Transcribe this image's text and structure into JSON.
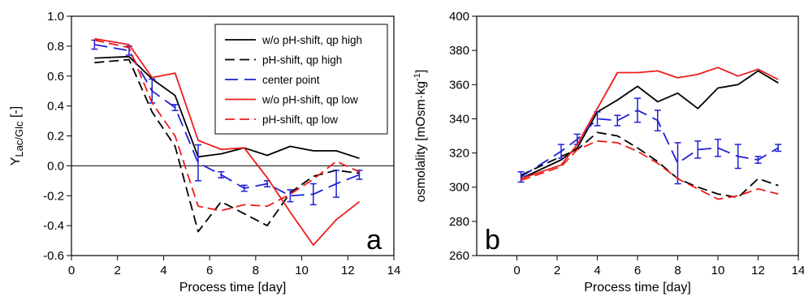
{
  "chart_data": [
    {
      "type": "line",
      "panel_label": "a",
      "xlabel": "Process time [day]",
      "ylabel_main": "Y",
      "ylabel_sub": "Lac/Glc",
      "ylabel_suffix": " [-]",
      "xlim": [
        0,
        14
      ],
      "ylim": [
        -0.6,
        1.0
      ],
      "xticks": [
        0,
        2,
        4,
        6,
        8,
        10,
        12,
        14
      ],
      "yticks": [
        -0.6,
        -0.4,
        -0.2,
        0.0,
        0.2,
        0.4,
        0.6,
        0.8,
        1.0
      ],
      "ytick_labels": [
        "-0.6",
        "-0.4",
        "-0.2",
        "0.0",
        "0.2",
        "0.4",
        "0.6",
        "0.8",
        "1.0"
      ],
      "reference_line_y": 0.0,
      "legend": {
        "position": "top-right"
      },
      "series": [
        {
          "name": "w/o pH-shift, qp high",
          "color": "#000000",
          "dash": "solid",
          "x": [
            1,
            2.5,
            3.5,
            4.5,
            5.5,
            6.5,
            7.5,
            8.5,
            9.5,
            10.5,
            11.5,
            12.5
          ],
          "y": [
            0.72,
            0.73,
            0.58,
            0.47,
            0.06,
            0.08,
            0.12,
            0.07,
            0.13,
            0.1,
            0.1,
            0.05
          ]
        },
        {
          "name": "pH-shift, qp high",
          "color": "#000000",
          "dash": "dashed",
          "x": [
            1,
            2.5,
            3.5,
            4.5,
            5.5,
            6.5,
            7.5,
            8.5,
            9.5,
            10.5,
            11.5,
            12.5
          ],
          "y": [
            0.69,
            0.71,
            0.36,
            0.13,
            -0.44,
            -0.24,
            -0.32,
            -0.4,
            -0.18,
            -0.07,
            -0.03,
            -0.05
          ]
        },
        {
          "name": "center point",
          "color": "#1f1fd6",
          "dash": "long-dash",
          "x": [
            1,
            2.5,
            3.5,
            4.5,
            5.5,
            6.5,
            7.5,
            8.5,
            9.5,
            10.5,
            11.5,
            12.5
          ],
          "y": [
            0.81,
            0.77,
            0.5,
            0.39,
            0.02,
            -0.06,
            -0.15,
            -0.12,
            -0.2,
            -0.19,
            -0.12,
            -0.06
          ],
          "err": [
            0.03,
            0.03,
            0.08,
            0.02,
            0.12,
            0.02,
            0.02,
            0.02,
            0.04,
            0.07,
            0.09,
            0.03
          ]
        },
        {
          "name": "w/o pH-shift, qp low",
          "color": "#ee1c1c",
          "dash": "solid",
          "x": [
            1,
            2.5,
            3.5,
            4.5,
            5.5,
            6.5,
            7.5,
            8.5,
            9.5,
            10.5,
            11.5,
            12.5
          ],
          "y": [
            0.85,
            0.81,
            0.59,
            0.62,
            0.17,
            0.11,
            0.12,
            -0.08,
            -0.31,
            -0.53,
            -0.36,
            -0.24
          ]
        },
        {
          "name": "pH-shift, qp low",
          "color": "#ee1c1c",
          "dash": "dashed",
          "x": [
            1,
            2.5,
            3.5,
            4.5,
            5.5,
            6.5,
            7.5,
            8.5,
            9.5,
            10.5,
            11.5,
            12.5
          ],
          "y": [
            0.84,
            0.79,
            0.42,
            0.2,
            -0.27,
            -0.3,
            -0.26,
            -0.27,
            -0.19,
            -0.09,
            0.03,
            -0.04
          ]
        }
      ]
    },
    {
      "type": "line",
      "panel_label": "b",
      "xlabel": "Process time [day]",
      "ylabel_main": "osmolality [mOsm·kg",
      "ylabel_sup": "-1",
      "ylabel_suffix": "]",
      "xlim": [
        -2,
        14
      ],
      "ylim": [
        260,
        400
      ],
      "xticks": [
        0,
        2,
        4,
        6,
        8,
        10,
        12,
        14
      ],
      "yticks": [
        260,
        280,
        300,
        320,
        340,
        360,
        380,
        400
      ],
      "ytick_labels": [
        "260",
        "280",
        "300",
        "320",
        "340",
        "360",
        "380",
        "400"
      ],
      "series": [
        {
          "name": "w/o pH-shift, qp high",
          "color": "#000000",
          "dash": "solid",
          "x": [
            0.2,
            2.2,
            3,
            4,
            5,
            6,
            7,
            8,
            9,
            10,
            11,
            12,
            13
          ],
          "y": [
            305,
            316,
            323,
            344,
            351,
            359,
            350,
            355,
            346,
            358,
            360,
            368,
            361
          ]
        },
        {
          "name": "pH-shift, qp high",
          "color": "#000000",
          "dash": "dashed",
          "x": [
            0.2,
            2.2,
            3,
            4,
            5,
            6,
            7,
            8,
            9,
            10,
            11,
            12,
            13
          ],
          "y": [
            307,
            318,
            322,
            332,
            330,
            323,
            315,
            305,
            300,
            296,
            294,
            305,
            301
          ]
        },
        {
          "name": "center point",
          "color": "#1f1fd6",
          "dash": "long-dash",
          "x": [
            0.2,
            2.2,
            3,
            4,
            5,
            6,
            7,
            8,
            9,
            10,
            11,
            12,
            13
          ],
          "y": [
            306,
            321,
            328,
            340,
            339,
            345,
            339,
            314,
            322,
            323,
            318,
            316,
            323
          ],
          "err": [
            3,
            4,
            3,
            4,
            3,
            7,
            6,
            12,
            5,
            5,
            7,
            2,
            2
          ]
        },
        {
          "name": "w/o pH-shift, qp low",
          "color": "#ee1c1c",
          "dash": "solid",
          "x": [
            0.2,
            2.2,
            3,
            4,
            5,
            6,
            7,
            8,
            9,
            10,
            11,
            12,
            13
          ],
          "y": [
            305,
            313,
            325,
            346,
            367,
            367,
            368,
            364,
            366,
            370,
            365,
            369,
            363
          ]
        },
        {
          "name": "pH-shift, qp low",
          "color": "#ee1c1c",
          "dash": "dashed",
          "x": [
            0.2,
            2.2,
            3,
            4,
            5,
            6,
            7,
            8,
            9,
            10,
            11,
            12,
            13
          ],
          "y": [
            304,
            312,
            322,
            327,
            326,
            321,
            314,
            305,
            299,
            293,
            295,
            299,
            296
          ]
        }
      ]
    }
  ]
}
